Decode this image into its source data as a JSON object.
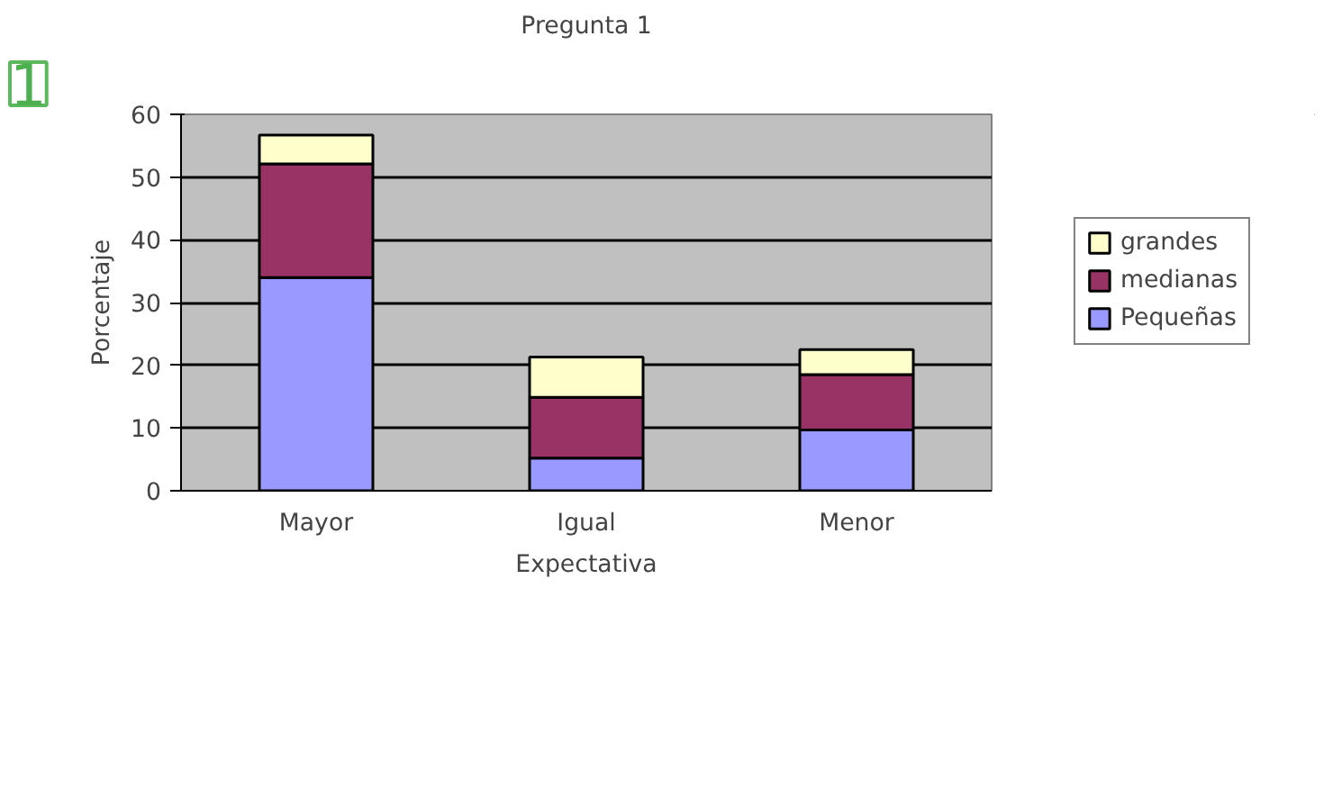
{
  "chart_data": {
    "type": "bar",
    "title": "Pregunta 1",
    "xlabel": "Expectativa",
    "ylabel": "Porcentaje",
    "annotations": [
      "1"
    ],
    "stacked": true,
    "categories": [
      "Mayor",
      "Igual",
      "Menor"
    ],
    "series": [
      {
        "name": "Pequeñas",
        "color": "#9999ff",
        "values": [
          34,
          5.2,
          9.7
        ]
      },
      {
        "name": "medianas",
        "color": "#993366",
        "values": [
          18.1,
          9.7,
          8.8
        ]
      },
      {
        "name": "grandes",
        "color": "#ffffcc",
        "values": [
          4.6,
          6.4,
          4.0
        ]
      }
    ],
    "ylim": [
      0,
      60
    ],
    "yticks": [
      0,
      10,
      20,
      30,
      40,
      50,
      60
    ],
    "grid": "y",
    "legend": "right"
  }
}
